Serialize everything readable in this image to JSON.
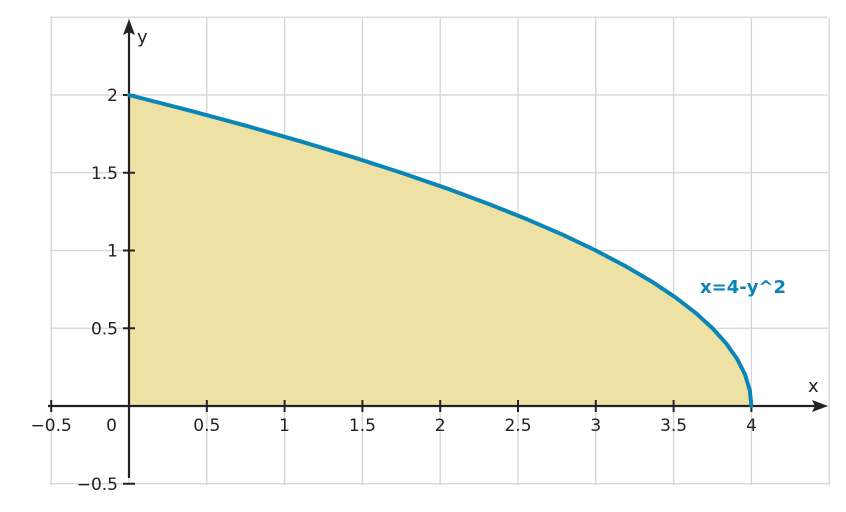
{
  "chart_data": {
    "type": "area",
    "xlabel": "x",
    "ylabel": "y",
    "xlim": [
      -0.5,
      4.5
    ],
    "ylim": [
      -0.5,
      2.5
    ],
    "grid": true,
    "x_ticks": [
      -0.5,
      0,
      0.5,
      1,
      1.5,
      2,
      2.5,
      3,
      3.5,
      4
    ],
    "x_tick_labels": [
      "−0.5",
      "0",
      "0.5",
      "1",
      "1.5",
      "2",
      "2.5",
      "3",
      "3.5",
      "4"
    ],
    "y_ticks": [
      -0.5,
      0.5,
      1,
      1.5,
      2
    ],
    "y_tick_labels": [
      "−0.5",
      "0.5",
      "1",
      "1.5",
      "2"
    ],
    "series": [
      {
        "name": "x=4-y^2",
        "x": [
          4,
          3.99,
          3.96,
          3.91,
          3.84,
          3.75,
          3.64,
          3.51,
          3.36,
          3.19,
          3,
          2.79,
          2.56,
          2.31,
          2.04,
          1.75,
          1.44,
          1.11,
          0.76,
          0.39,
          0
        ],
        "y": [
          0,
          0.1,
          0.2,
          0.3,
          0.4,
          0.5,
          0.6,
          0.7,
          0.8,
          0.9,
          1,
          1.1,
          1.2,
          1.3,
          1.4,
          1.5,
          1.6,
          1.7,
          1.8,
          1.9,
          2
        ],
        "color": "#0a85b7",
        "fill": "#ede2a4"
      }
    ]
  }
}
